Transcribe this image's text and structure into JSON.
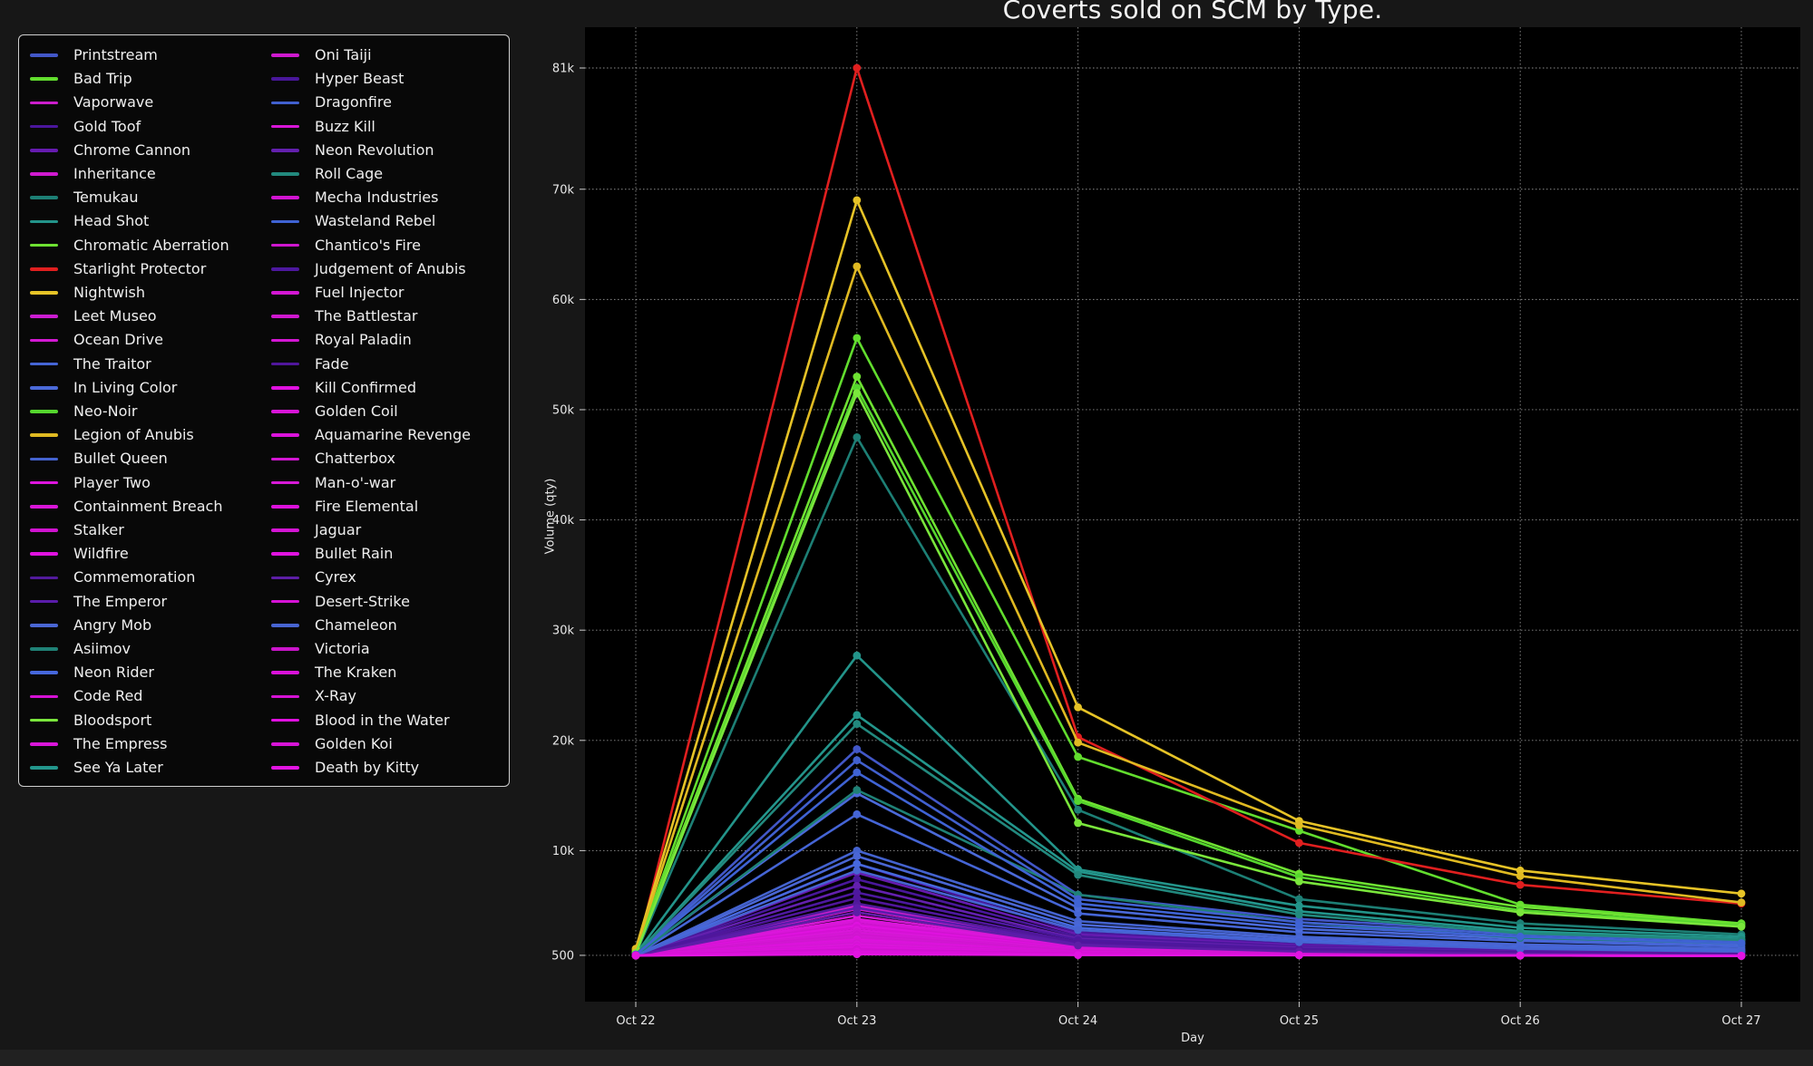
{
  "chart_data": {
    "type": "line",
    "title": "Coverts sold on SCM by Type.",
    "xlabel": "Day",
    "ylabel": "Volume (qty)",
    "x_ticks": [
      "Oct 22",
      "Oct 23",
      "Oct 24",
      "Oct 25",
      "Oct 26",
      "Oct 27"
    ],
    "y_ticks": [
      {
        "label": "500",
        "value": 500
      },
      {
        "label": "10k",
        "value": 10000
      },
      {
        "label": "20k",
        "value": 20000
      },
      {
        "label": "30k",
        "value": 30000
      },
      {
        "label": "40k",
        "value": 40000
      },
      {
        "label": "50k",
        "value": 50000
      },
      {
        "label": "60k",
        "value": 60000
      },
      {
        "label": "70k",
        "value": 70000
      },
      {
        "label": "81k",
        "value": 81000
      }
    ],
    "ylim": [
      -3700,
      84700
    ],
    "grid": true,
    "legend_position": "upper left",
    "legend_columns": 2,
    "series": [
      {
        "name": "Printstream",
        "color": "#4257c8",
        "values": [
          600,
          19200,
          6000,
          3800,
          2600,
          1900
        ]
      },
      {
        "name": "Bad Trip",
        "color": "#62dd2e",
        "values": [
          900,
          56500,
          18500,
          11800,
          5100,
          3400
        ]
      },
      {
        "name": "Vaporwave",
        "color": "#cc1ecc",
        "values": [
          500,
          5000,
          1500,
          900,
          700,
          560
        ]
      },
      {
        "name": "Gold Toof",
        "color": "#4b169d",
        "values": [
          500,
          8800,
          2600,
          1500,
          1000,
          800
        ]
      },
      {
        "name": "Chrome Cannon",
        "color": "#661bb0",
        "values": [
          500,
          8000,
          2400,
          1400,
          950,
          750
        ]
      },
      {
        "name": "Inheritance",
        "color": "#d01ad0",
        "values": [
          500,
          4700,
          1400,
          860,
          680,
          550
        ]
      },
      {
        "name": "Temukau",
        "color": "#1d7f75",
        "values": [
          600,
          47500,
          13700,
          5600,
          3400,
          2400
        ]
      },
      {
        "name": "Head Shot",
        "color": "#23948a",
        "values": [
          600,
          27700,
          8300,
          5000,
          3000,
          2200
        ]
      },
      {
        "name": "Chromatic Aberration",
        "color": "#6ee232",
        "values": [
          800,
          53000,
          14700,
          7900,
          4900,
          3300
        ]
      },
      {
        "name": "Starlight Protector",
        "color": "#e01f1f",
        "values": [
          500,
          81000,
          20300,
          10700,
          6900,
          5200
        ]
      },
      {
        "name": "Nightwish",
        "color": "#e6c327",
        "values": [
          1100,
          69000,
          23000,
          12700,
          8200,
          6100
        ]
      },
      {
        "name": "Leet Museo",
        "color": "#cb1dd1",
        "values": [
          500,
          4400,
          1350,
          830,
          660,
          540
        ]
      },
      {
        "name": "Ocean Drive",
        "color": "#d319d3",
        "values": [
          500,
          4100,
          1300,
          800,
          640,
          530
        ]
      },
      {
        "name": "The Traitor",
        "color": "#4565d6",
        "values": [
          520,
          13300,
          4300,
          2600,
          1800,
          1300
        ]
      },
      {
        "name": "In Living Color",
        "color": "#4b6ad9",
        "values": [
          540,
          15200,
          4800,
          2900,
          2000,
          1500
        ]
      },
      {
        "name": "Neo-Noir",
        "color": "#55d62e",
        "values": [
          700,
          52000,
          14500,
          7600,
          4600,
          3200
        ]
      },
      {
        "name": "Legion of Anubis",
        "color": "#e0ba22",
        "values": [
          1000,
          63000,
          19800,
          12300,
          7700,
          5300
        ]
      },
      {
        "name": "Bullet Queen",
        "color": "#4463cf",
        "values": [
          510,
          10000,
          3600,
          2200,
          1500,
          1100
        ]
      },
      {
        "name": "Player Two",
        "color": "#dd15dd",
        "values": [
          500,
          3800,
          1250,
          780,
          620,
          520
        ]
      },
      {
        "name": "Containment Breach",
        "color": "#d816d8",
        "values": [
          500,
          3600,
          1200,
          760,
          610,
          515
        ]
      },
      {
        "name": "Stalker",
        "color": "#d013d0",
        "values": [
          500,
          3400,
          1150,
          740,
          600,
          510
        ]
      },
      {
        "name": "Wildfire",
        "color": "#e012e0",
        "values": [
          500,
          3200,
          1100,
          720,
          590,
          505
        ]
      },
      {
        "name": "Commemoration",
        "color": "#521a9c",
        "values": [
          500,
          5200,
          1600,
          950,
          700,
          580
        ]
      },
      {
        "name": "The Emperor",
        "color": "#5a1caa",
        "values": [
          500,
          4800,
          1500,
          900,
          680,
          560
        ]
      },
      {
        "name": "Angry Mob",
        "color": "#4a66d4",
        "values": [
          500,
          9500,
          3300,
          2000,
          1400,
          1000
        ]
      },
      {
        "name": "Asiimov",
        "color": "#1f8176",
        "values": [
          500,
          15500,
          6000,
          3500,
          2100,
          1600
        ]
      },
      {
        "name": "Neon Rider",
        "color": "#4668dd",
        "values": [
          500,
          8800,
          3000,
          1800,
          1200,
          900
        ]
      },
      {
        "name": "Code Red",
        "color": "#d511d5",
        "values": [
          500,
          3000,
          1050,
          700,
          580,
          500
        ]
      },
      {
        "name": "Bloodsport",
        "color": "#7ae63c",
        "values": [
          700,
          51500,
          12500,
          7200,
          4400,
          3100
        ]
      },
      {
        "name": "The Empress",
        "color": "#da16da",
        "values": [
          500,
          2800,
          1000,
          690,
          570,
          500
        ]
      },
      {
        "name": "See Ya Later",
        "color": "#23968c",
        "values": [
          550,
          22300,
          8100,
          4500,
          2700,
          2000
        ]
      },
      {
        "name": "Oni Taiji",
        "color": "#cf19cf",
        "values": [
          500,
          2600,
          960,
          680,
          560,
          500
        ]
      },
      {
        "name": "Hyper Beast",
        "color": "#49179a",
        "values": [
          500,
          7400,
          2200,
          1300,
          900,
          700
        ]
      },
      {
        "name": "Dragonfire",
        "color": "#4160cf",
        "values": [
          580,
          18200,
          5600,
          3500,
          2400,
          1800
        ]
      },
      {
        "name": "Buzz Kill",
        "color": "#d816d8",
        "values": [
          500,
          2500,
          930,
          670,
          555,
          495
        ]
      },
      {
        "name": "Neon Revolution",
        "color": "#6320ae",
        "values": [
          500,
          6800,
          2000,
          1200,
          850,
          650
        ]
      },
      {
        "name": "Roll Cage",
        "color": "#22897e",
        "values": [
          550,
          21500,
          7800,
          4200,
          2500,
          1900
        ]
      },
      {
        "name": "Mecha Industries",
        "color": "#d214d2",
        "values": [
          500,
          2400,
          900,
          660,
          550,
          490
        ]
      },
      {
        "name": "Wasteland Rebel",
        "color": "#3f63d4",
        "values": [
          560,
          17100,
          5200,
          3200,
          2200,
          1600
        ]
      },
      {
        "name": "Chantico's Fire",
        "color": "#cf16cf",
        "values": [
          500,
          2300,
          880,
          650,
          545,
          490
        ]
      },
      {
        "name": "Judgement of Anubis",
        "color": "#4d189f",
        "values": [
          500,
          6200,
          1900,
          1100,
          800,
          620
        ]
      },
      {
        "name": "Fuel Injector",
        "color": "#d417d4",
        "values": [
          500,
          2200,
          860,
          640,
          540,
          485
        ]
      },
      {
        "name": "The Battlestar",
        "color": "#ce18ce",
        "values": [
          500,
          2100,
          840,
          630,
          535,
          485
        ]
      },
      {
        "name": "Royal Paladin",
        "color": "#d316d3",
        "values": [
          500,
          2000,
          820,
          620,
          530,
          480
        ]
      },
      {
        "name": "Fade",
        "color": "#50169c",
        "values": [
          500,
          5700,
          1700,
          1000,
          750,
          600
        ]
      },
      {
        "name": "Kill Confirmed",
        "color": "#e011e0",
        "values": [
          500,
          1900,
          800,
          610,
          525,
          480
        ]
      },
      {
        "name": "Golden Coil",
        "color": "#d815d8",
        "values": [
          500,
          1800,
          780,
          600,
          520,
          478
        ]
      },
      {
        "name": "Aquamarine Revenge",
        "color": "#db13db",
        "values": [
          500,
          1700,
          760,
          590,
          515,
          475
        ]
      },
      {
        "name": "Chatterbox",
        "color": "#d216d2",
        "values": [
          500,
          1600,
          740,
          580,
          510,
          472
        ]
      },
      {
        "name": "Man-o'-war",
        "color": "#d71ad7",
        "values": [
          500,
          1500,
          720,
          570,
          505,
          470
        ]
      },
      {
        "name": "Fire Elemental",
        "color": "#dc12dc",
        "values": [
          500,
          1400,
          700,
          560,
          500,
          468
        ]
      },
      {
        "name": "Jaguar",
        "color": "#d415d4",
        "values": [
          500,
          1300,
          680,
          550,
          498,
          466
        ]
      },
      {
        "name": "Bullet Rain",
        "color": "#e013e0",
        "values": [
          500,
          1200,
          660,
          545,
          495,
          464
        ]
      },
      {
        "name": "Cyrex",
        "color": "#5d1ea6",
        "values": [
          500,
          4400,
          1400,
          850,
          650,
          540
        ]
      },
      {
        "name": "Desert-Strike",
        "color": "#d612d6",
        "values": [
          500,
          1100,
          640,
          540,
          492,
          462
        ]
      },
      {
        "name": "Chameleon",
        "color": "#4764d2",
        "values": [
          500,
          8200,
          2800,
          1700,
          1100,
          850
        ]
      },
      {
        "name": "Victoria",
        "color": "#cb15cb",
        "values": [
          490,
          1000,
          620,
          535,
          490,
          460
        ]
      },
      {
        "name": "The Kraken",
        "color": "#da11da",
        "values": [
          490,
          950,
          600,
          530,
          488,
          458
        ]
      },
      {
        "name": "X-Ray",
        "color": "#d513d5",
        "values": [
          490,
          900,
          590,
          525,
          486,
          456
        ]
      },
      {
        "name": "Blood in the Water",
        "color": "#e010e0",
        "values": [
          485,
          800,
          570,
          520,
          484,
          455
        ]
      },
      {
        "name": "Golden Koi",
        "color": "#d714d7",
        "values": [
          485,
          700,
          550,
          515,
          482,
          452
        ]
      },
      {
        "name": "Death by Kitty",
        "color": "#e214e2",
        "values": [
          480,
          600,
          530,
          510,
          480,
          450
        ]
      }
    ]
  },
  "colors": {
    "page_background": "#171717",
    "plot_background": "#000000",
    "legend_background": "#080808",
    "gridline": "rgba(255,255,255,0.55)",
    "text": "#e8e8e8"
  }
}
